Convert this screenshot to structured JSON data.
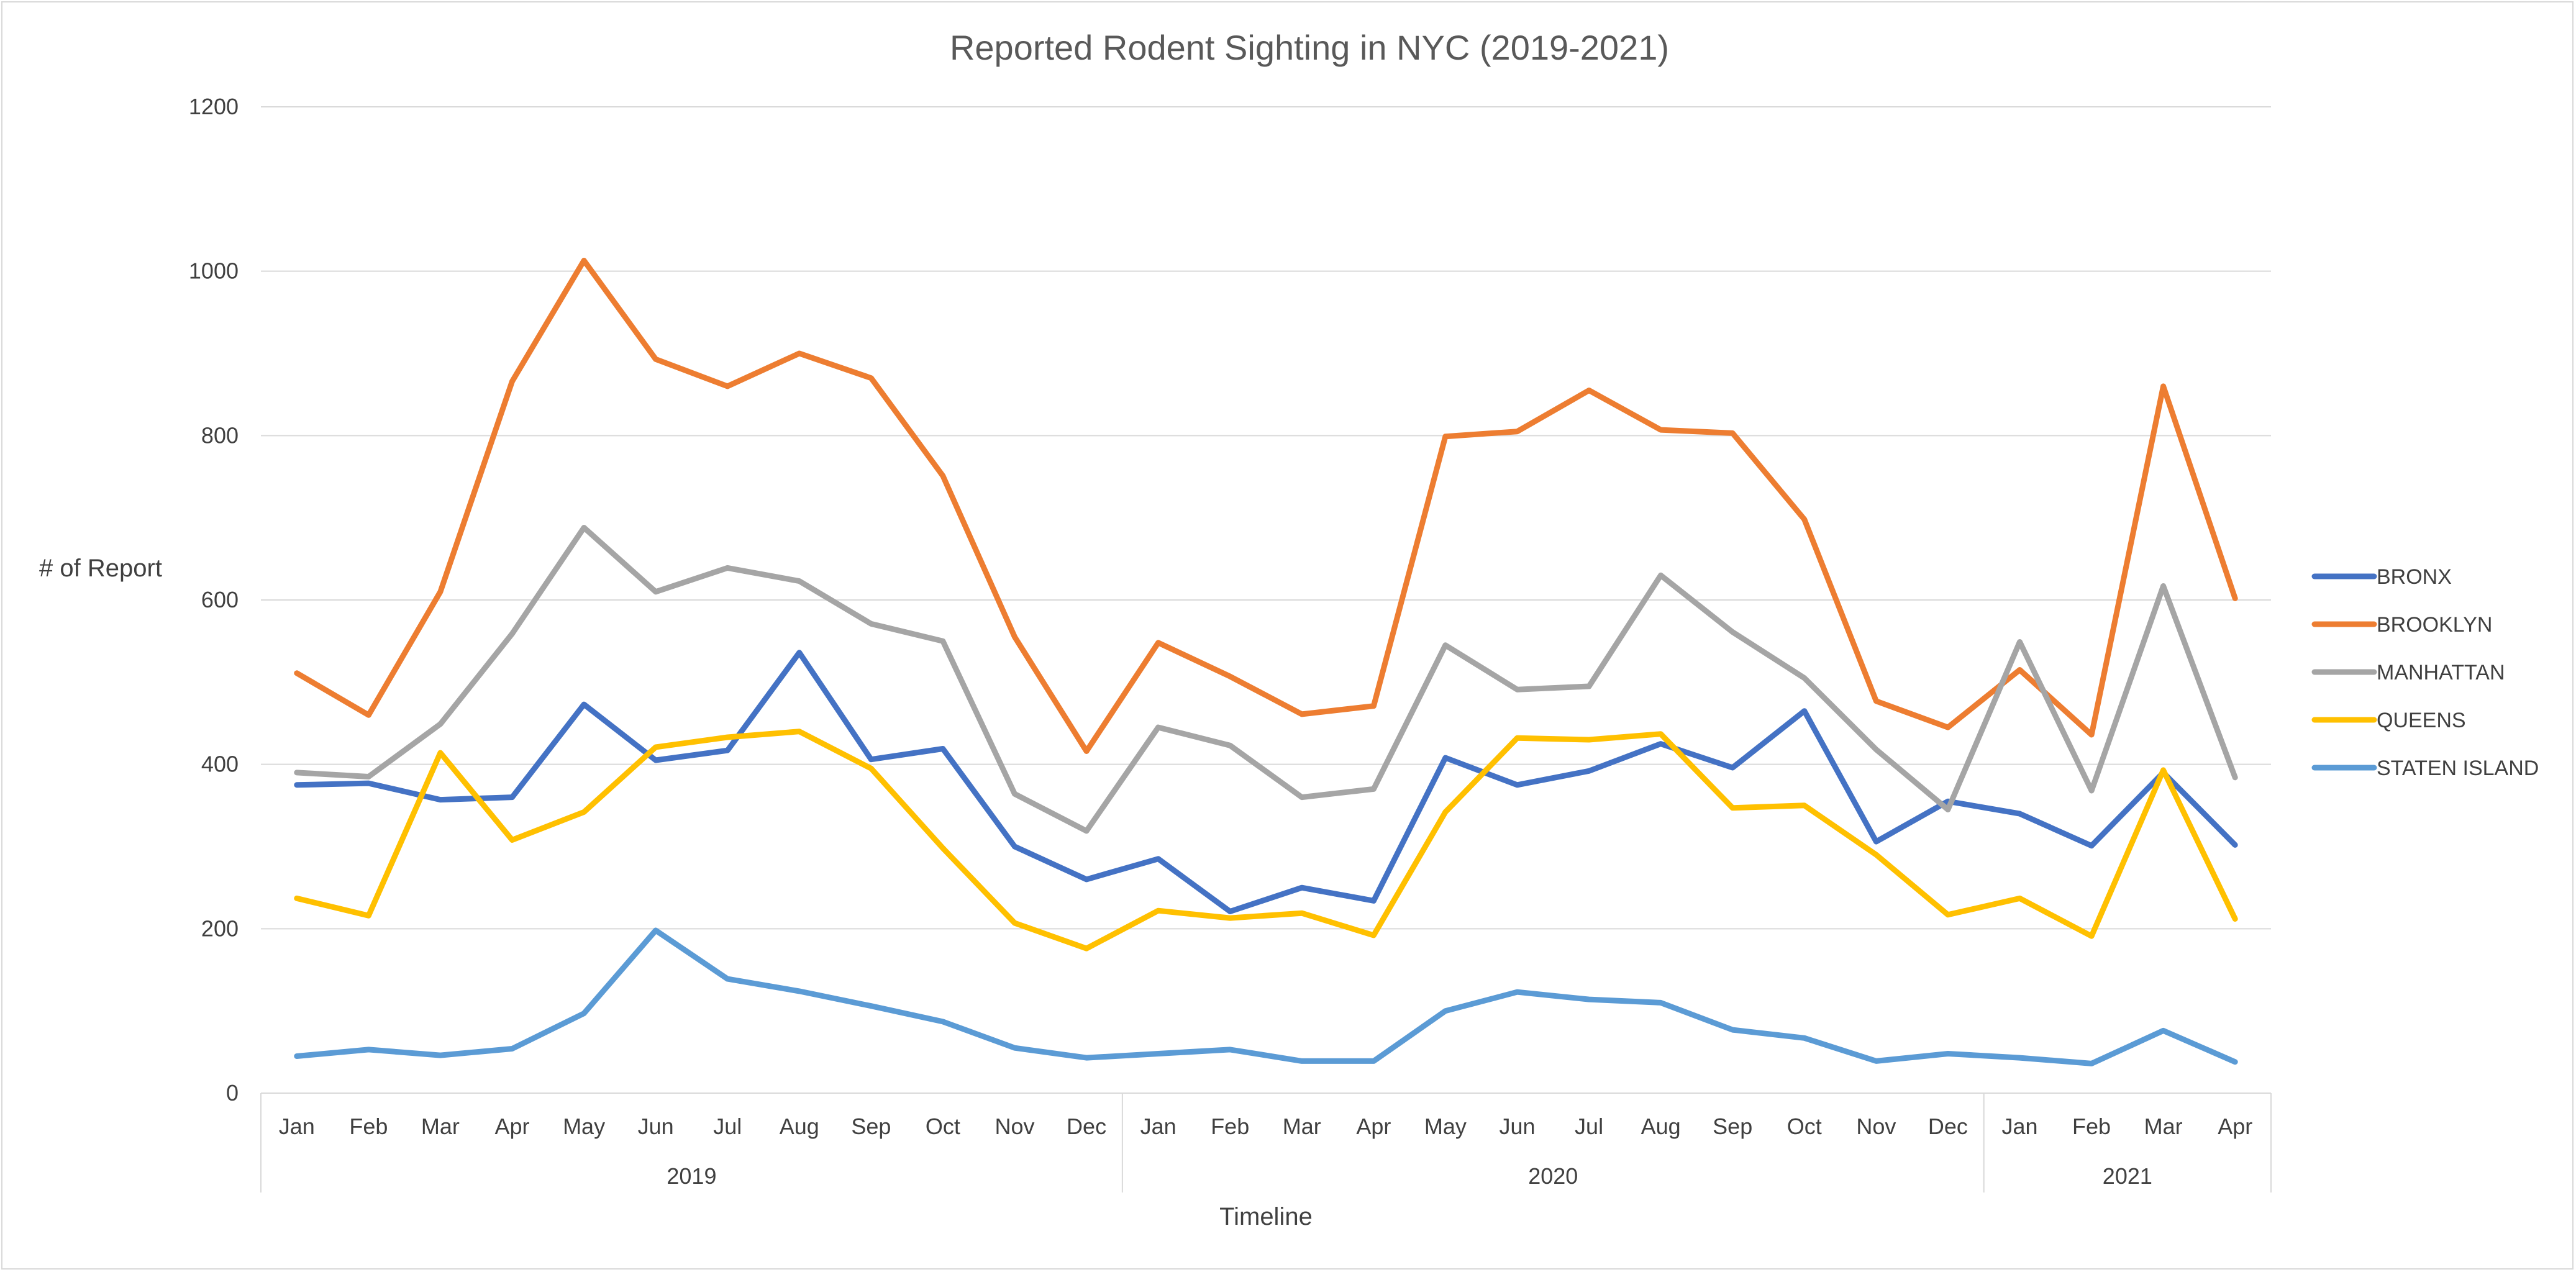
{
  "chart_data": {
    "type": "line",
    "title": "Reported Rodent Sighting in NYC (2019-2021)",
    "xlabel": "Timeline",
    "ylabel": "# of Report",
    "ylim": [
      0,
      1200
    ],
    "yticks": [
      "0",
      "200",
      "400",
      "600",
      "800",
      "1000",
      "1200"
    ],
    "grid": true,
    "legend_position": "right",
    "categories": [
      "Jan",
      "Feb",
      "Mar",
      "Apr",
      "May",
      "Jun",
      "Jul",
      "Aug",
      "Sep",
      "Oct",
      "Nov",
      "Dec",
      "Jan",
      "Feb",
      "Mar",
      "Apr",
      "May",
      "Jun",
      "Jul",
      "Aug",
      "Sep",
      "Oct",
      "Nov",
      "Dec",
      "Jan",
      "Feb",
      "Mar",
      "Apr"
    ],
    "groups": [
      {
        "label": "2019",
        "count": 12
      },
      {
        "label": "2020",
        "count": 12
      },
      {
        "label": "2021",
        "count": 4
      }
    ],
    "series": [
      {
        "name": "BRONX",
        "color": "#4472C4",
        "values": [
          375,
          377,
          357,
          360,
          473,
          405,
          417,
          536,
          406,
          419,
          300,
          260,
          285,
          221,
          250,
          234,
          408,
          375,
          392,
          425,
          396,
          465,
          306,
          355,
          340,
          301,
          390,
          302
        ]
      },
      {
        "name": "BROOKLYN",
        "color": "#ED7D31",
        "values": [
          511,
          460,
          610,
          866,
          1013,
          893,
          860,
          900,
          870,
          751,
          555,
          416,
          548,
          507,
          461,
          471,
          799,
          805,
          855,
          807,
          803,
          698,
          477,
          445,
          515,
          436,
          860,
          602
        ]
      },
      {
        "name": "MANHATTAN",
        "color": "#A5A5A5",
        "values": [
          390,
          385,
          449,
          559,
          688,
          610,
          639,
          623,
          571,
          550,
          364,
          319,
          445,
          423,
          360,
          370,
          545,
          491,
          495,
          630,
          561,
          505,
          418,
          345,
          549,
          368,
          617,
          384
        ]
      },
      {
        "name": "QUEENS",
        "color": "#FFC000",
        "values": [
          237,
          216,
          414,
          308,
          342,
          421,
          433,
          440,
          395,
          298,
          207,
          176,
          222,
          213,
          219,
          192,
          342,
          432,
          430,
          437,
          347,
          350,
          290,
          217,
          237,
          191,
          393,
          212
        ]
      },
      {
        "name": "STATEN ISLAND",
        "color": "#5B9BD5",
        "values": [
          45,
          53,
          46,
          54,
          97,
          198,
          139,
          124,
          106,
          87,
          55,
          43,
          48,
          53,
          39,
          39,
          100,
          123,
          114,
          110,
          77,
          67,
          39,
          48,
          43,
          36,
          76,
          38
        ]
      }
    ]
  }
}
